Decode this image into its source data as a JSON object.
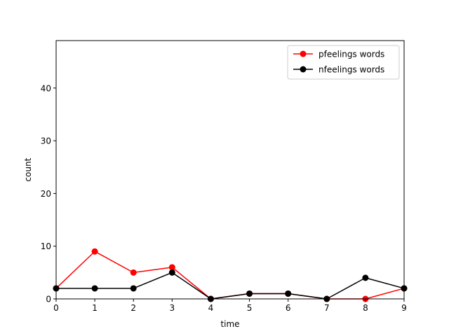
{
  "chart_data": {
    "type": "line",
    "title": "",
    "xlabel": "time",
    "ylabel": "count",
    "xlim": [
      0,
      9
    ],
    "ylim": [
      0,
      49
    ],
    "x": [
      0,
      1,
      2,
      3,
      4,
      5,
      6,
      7,
      8,
      9
    ],
    "x_ticks": [
      "0",
      "1",
      "2",
      "3",
      "4",
      "5",
      "6",
      "7",
      "8",
      "9"
    ],
    "y_ticks": [
      0,
      10,
      20,
      30,
      40
    ],
    "grid": false,
    "legend_position": "top-right",
    "series": [
      {
        "name": "pfeelings words",
        "color": "#ff0000",
        "marker": "circle",
        "values": [
          2,
          9,
          5,
          6,
          0,
          1,
          1,
          0,
          0,
          2
        ]
      },
      {
        "name": "nfeelings words",
        "color": "#000000",
        "marker": "circle",
        "values": [
          2,
          2,
          2,
          5,
          0,
          1,
          1,
          0,
          4,
          2
        ]
      }
    ]
  }
}
